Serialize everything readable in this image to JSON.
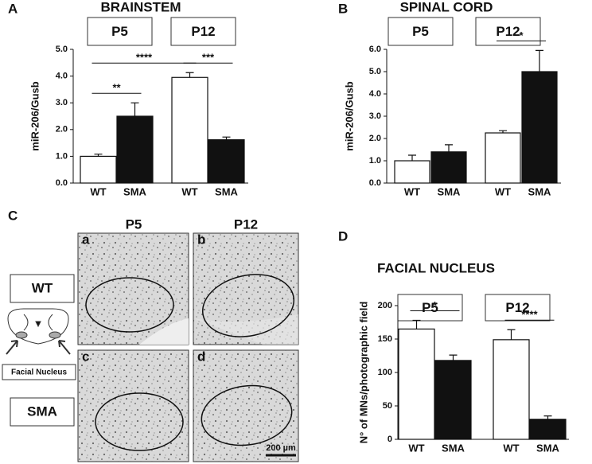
{
  "chart_data": [
    {
      "type": "bar",
      "panel": "A",
      "title": "BRAINSTEM",
      "groups": [
        "P5",
        "P12"
      ],
      "categories": [
        "WT",
        "SMA",
        "WT",
        "SMA"
      ],
      "values": [
        1.0,
        2.5,
        3.95,
        1.62
      ],
      "errors": [
        0.08,
        0.5,
        0.18,
        0.1
      ],
      "colors": [
        "#ffffff",
        "#111111",
        "#ffffff",
        "#111111"
      ],
      "ylabel": "miR-206/Gusb",
      "ylim": [
        0,
        5
      ],
      "yticks": [
        {
          "value": 0,
          "label": "0.0"
        },
        {
          "value": 1,
          "label": "1.0"
        },
        {
          "value": 2,
          "label": "2.0"
        },
        {
          "value": 3,
          "label": "3.0"
        },
        {
          "value": 4,
          "label": "4.0"
        },
        {
          "value": 5,
          "label": "5.0"
        }
      ],
      "significance": [
        {
          "label": "**",
          "from": 0,
          "to": 1
        },
        {
          "label": "****",
          "from": 0,
          "to": 2
        },
        {
          "label": "***",
          "from": 2,
          "to": 3
        }
      ]
    },
    {
      "type": "bar",
      "panel": "B",
      "title": "SPINAL CORD",
      "groups": [
        "P5",
        "P12"
      ],
      "categories": [
        "WT",
        "SMA",
        "WT",
        "SMA"
      ],
      "values": [
        1.0,
        1.4,
        2.25,
        5.0
      ],
      "errors": [
        0.25,
        0.32,
        0.1,
        0.95
      ],
      "colors": [
        "#ffffff",
        "#111111",
        "#ffffff",
        "#111111"
      ],
      "ylabel": "miR-206/Gusb",
      "ylim": [
        0,
        6
      ],
      "yticks": [
        {
          "value": 0,
          "label": "0.0"
        },
        {
          "value": 1,
          "label": "1.0"
        },
        {
          "value": 2,
          "label": "2.0"
        },
        {
          "value": 3,
          "label": "3.0"
        },
        {
          "value": 4,
          "label": "4.0"
        },
        {
          "value": 5,
          "label": "5.0"
        },
        {
          "value": 6,
          "label": "6.0"
        }
      ],
      "significance": [
        {
          "label": "*",
          "from": 2,
          "to": 3
        }
      ]
    },
    {
      "type": "bar",
      "panel": "D",
      "title": "FACIAL NUCLEUS",
      "groups": [
        "P5",
        "P12"
      ],
      "categories": [
        "WT",
        "SMA",
        "WT",
        "SMA"
      ],
      "values": [
        165,
        118,
        149,
        30
      ],
      "errors": [
        13,
        8,
        15,
        5
      ],
      "colors": [
        "#ffffff",
        "#111111",
        "#ffffff",
        "#111111"
      ],
      "ylabel": "N° of MNs/photographic field",
      "ylim": [
        0,
        200
      ],
      "yticks": [
        0,
        50,
        100,
        150,
        200
      ],
      "significance": [
        {
          "label": "*",
          "from": 0,
          "to": 1
        },
        {
          "label": "****",
          "from": 2,
          "to": 3
        }
      ]
    }
  ],
  "panel_c": {
    "panel": "C",
    "columns": [
      "P5",
      "P12"
    ],
    "rows": [
      "WT",
      "SMA"
    ],
    "images": [
      "a",
      "b",
      "c",
      "d"
    ],
    "diagram_label": "Facial Nucleus",
    "scale_bar": "200 µm"
  }
}
